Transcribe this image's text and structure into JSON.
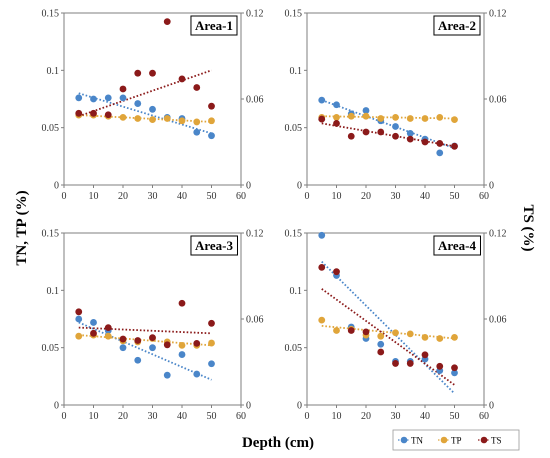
{
  "figure": {
    "y_label_left": "TN, TP (%)",
    "y_label_right": "TS (%)",
    "x_label": "Depth (cm)",
    "legend": [
      {
        "key": "TN",
        "label": "TN",
        "color": "#4a86c9"
      },
      {
        "key": "TP",
        "label": "TP",
        "color": "#e0a53a"
      },
      {
        "key": "TS",
        "label": "TS",
        "color": "#8b1a1a"
      }
    ]
  },
  "chart_data": [
    {
      "type": "scatter",
      "title": "Area-1",
      "x": [
        5,
        10,
        15,
        20,
        25,
        30,
        35,
        40,
        45,
        50
      ],
      "xlim": [
        0,
        60
      ],
      "xticks": [
        0,
        10,
        20,
        30,
        40,
        50,
        60
      ],
      "left_axis": {
        "ylim": [
          0,
          0.15
        ],
        "ticks": [
          0,
          0.05,
          0.1,
          0.15
        ],
        "tick_labels": [
          "0",
          "0.05",
          "0.1",
          "0.15"
        ]
      },
      "right_axis": {
        "ylim": [
          0,
          0.12
        ],
        "ticks": [
          0,
          0.06,
          0.12
        ],
        "tick_labels": [
          "0",
          "0.06",
          "0.12"
        ]
      },
      "series": [
        {
          "name": "TN",
          "axis": "left",
          "color": "#4a86c9",
          "values": [
            0.076,
            0.075,
            0.076,
            0.076,
            0.071,
            0.066,
            0.059,
            0.058,
            0.046,
            0.043
          ]
        },
        {
          "name": "TP",
          "axis": "left",
          "color": "#e0a53a",
          "values": [
            0.061,
            0.061,
            0.06,
            0.059,
            0.058,
            0.057,
            0.058,
            0.056,
            0.055,
            0.056
          ]
        },
        {
          "name": "TS",
          "axis": "right",
          "color": "#8b1a1a",
          "values": [
            0.05,
            0.05,
            0.049,
            0.067,
            0.078,
            0.078,
            0.114,
            0.074,
            0.068,
            0.055
          ]
        }
      ],
      "trendlines": [
        {
          "series": "TN",
          "axis": "left",
          "x": [
            5,
            50
          ],
          "y": [
            0.08,
            0.045
          ]
        },
        {
          "series": "TP",
          "axis": "left",
          "x": [
            5,
            50
          ],
          "y": [
            0.061,
            0.055
          ]
        },
        {
          "series": "TS",
          "axis": "right",
          "x": [
            5,
            50
          ],
          "y": [
            0.048,
            0.08
          ]
        }
      ]
    },
    {
      "type": "scatter",
      "title": "Area-2",
      "x": [
        5,
        10,
        15,
        20,
        25,
        30,
        35,
        40,
        45,
        50
      ],
      "xlim": [
        0,
        60
      ],
      "xticks": [
        0,
        10,
        20,
        30,
        40,
        50,
        60
      ],
      "left_axis": {
        "ylim": [
          0,
          0.15
        ],
        "ticks": [
          0,
          0.05,
          0.1,
          0.15
        ],
        "tick_labels": [
          "0",
          "0.05",
          "0.1",
          "0.15"
        ]
      },
      "right_axis": {
        "ylim": [
          0,
          0.12
        ],
        "ticks": [
          0,
          0.06,
          0.12
        ],
        "tick_labels": [
          "0",
          "0.06",
          "0.12"
        ]
      },
      "series": [
        {
          "name": "TN",
          "axis": "left",
          "color": "#4a86c9",
          "values": [
            0.074,
            0.07,
            0.062,
            0.065,
            0.056,
            0.051,
            0.045,
            0.04,
            0.028,
            0.034
          ]
        },
        {
          "name": "TP",
          "axis": "left",
          "color": "#e0a53a",
          "values": [
            0.059,
            0.059,
            0.06,
            0.06,
            0.058,
            0.059,
            0.058,
            0.058,
            0.059,
            0.057
          ]
        },
        {
          "name": "TS",
          "axis": "right",
          "color": "#8b1a1a",
          "values": [
            0.046,
            0.043,
            0.034,
            0.037,
            0.037,
            0.034,
            0.032,
            0.03,
            0.029,
            0.027
          ]
        }
      ],
      "trendlines": [
        {
          "series": "TN",
          "axis": "left",
          "x": [
            5,
            50
          ],
          "y": [
            0.074,
            0.032
          ]
        },
        {
          "series": "TP",
          "axis": "left",
          "x": [
            5,
            50
          ],
          "y": [
            0.06,
            0.058
          ]
        },
        {
          "series": "TS",
          "axis": "right",
          "x": [
            5,
            50
          ],
          "y": [
            0.043,
            0.027
          ]
        }
      ]
    },
    {
      "type": "scatter",
      "title": "Area-3",
      "x": [
        5,
        10,
        15,
        20,
        25,
        30,
        35,
        40,
        45,
        50
      ],
      "xlim": [
        0,
        60
      ],
      "xticks": [
        0,
        10,
        20,
        30,
        40,
        50,
        60
      ],
      "left_axis": {
        "ylim": [
          0,
          0.15
        ],
        "ticks": [
          0,
          0.05,
          0.1,
          0.15
        ],
        "tick_labels": [
          "0",
          "0.05",
          "0.1",
          "0.15"
        ]
      },
      "right_axis": {
        "ylim": [
          0,
          0.12
        ],
        "ticks": [
          0,
          0.06,
          0.12
        ],
        "tick_labels": [
          "0",
          "0.06",
          "0.12"
        ]
      },
      "series": [
        {
          "name": "TN",
          "axis": "left",
          "color": "#4a86c9",
          "values": [
            0.075,
            0.072,
            0.065,
            0.05,
            0.039,
            0.05,
            0.026,
            0.044,
            0.027,
            0.036
          ]
        },
        {
          "name": "TP",
          "axis": "left",
          "color": "#e0a53a",
          "values": [
            0.06,
            0.061,
            0.06,
            0.056,
            0.055,
            0.058,
            0.055,
            0.052,
            0.052,
            0.054
          ]
        },
        {
          "name": "TS",
          "axis": "right",
          "color": "#8b1a1a",
          "values": [
            0.065,
            0.05,
            0.054,
            0.046,
            0.045,
            0.047,
            0.042,
            0.071,
            0.043,
            0.057
          ]
        }
      ],
      "trendlines": [
        {
          "series": "TN",
          "axis": "left",
          "x": [
            5,
            50
          ],
          "y": [
            0.072,
            0.022
          ]
        },
        {
          "series": "TP",
          "axis": "left",
          "x": [
            5,
            50
          ],
          "y": [
            0.061,
            0.052
          ]
        },
        {
          "series": "TS",
          "axis": "right",
          "x": [
            5,
            50
          ],
          "y": [
            0.054,
            0.05
          ]
        }
      ]
    },
    {
      "type": "scatter",
      "title": "Area-4",
      "x": [
        5,
        10,
        15,
        20,
        25,
        30,
        35,
        40,
        45,
        50
      ],
      "xlim": [
        0,
        60
      ],
      "xticks": [
        0,
        10,
        20,
        30,
        40,
        50,
        60
      ],
      "left_axis": {
        "ylim": [
          0,
          0.15
        ],
        "ticks": [
          0,
          0.05,
          0.1,
          0.15
        ],
        "tick_labels": [
          "0",
          "0.05",
          "0.1",
          "0.15"
        ]
      },
      "right_axis": {
        "ylim": [
          0,
          0.12
        ],
        "ticks": [
          0,
          0.06,
          0.12
        ],
        "tick_labels": [
          "0",
          "0.06",
          "0.12"
        ]
      },
      "series": [
        {
          "name": "TN",
          "axis": "left",
          "color": "#4a86c9",
          "values": [
            0.148,
            0.113,
            0.068,
            0.058,
            0.053,
            0.038,
            0.038,
            0.04,
            0.03,
            0.028
          ]
        },
        {
          "name": "TP",
          "axis": "left",
          "color": "#e0a53a",
          "values": [
            0.074,
            0.065,
            0.066,
            0.061,
            0.06,
            0.063,
            0.062,
            0.059,
            0.058,
            0.059
          ]
        },
        {
          "name": "TS",
          "axis": "right",
          "color": "#8b1a1a",
          "values": [
            0.096,
            0.093,
            0.052,
            0.051,
            0.037,
            0.029,
            0.029,
            0.035,
            0.027,
            0.026
          ]
        }
      ],
      "trendlines": [
        {
          "series": "TN",
          "axis": "left",
          "x": [
            5,
            50
          ],
          "y": [
            0.125,
            0.01
          ]
        },
        {
          "series": "TP",
          "axis": "left",
          "x": [
            5,
            50
          ],
          "y": [
            0.069,
            0.058
          ]
        },
        {
          "series": "TS",
          "axis": "right",
          "x": [
            5,
            50
          ],
          "y": [
            0.081,
            0.014
          ]
        }
      ]
    }
  ]
}
